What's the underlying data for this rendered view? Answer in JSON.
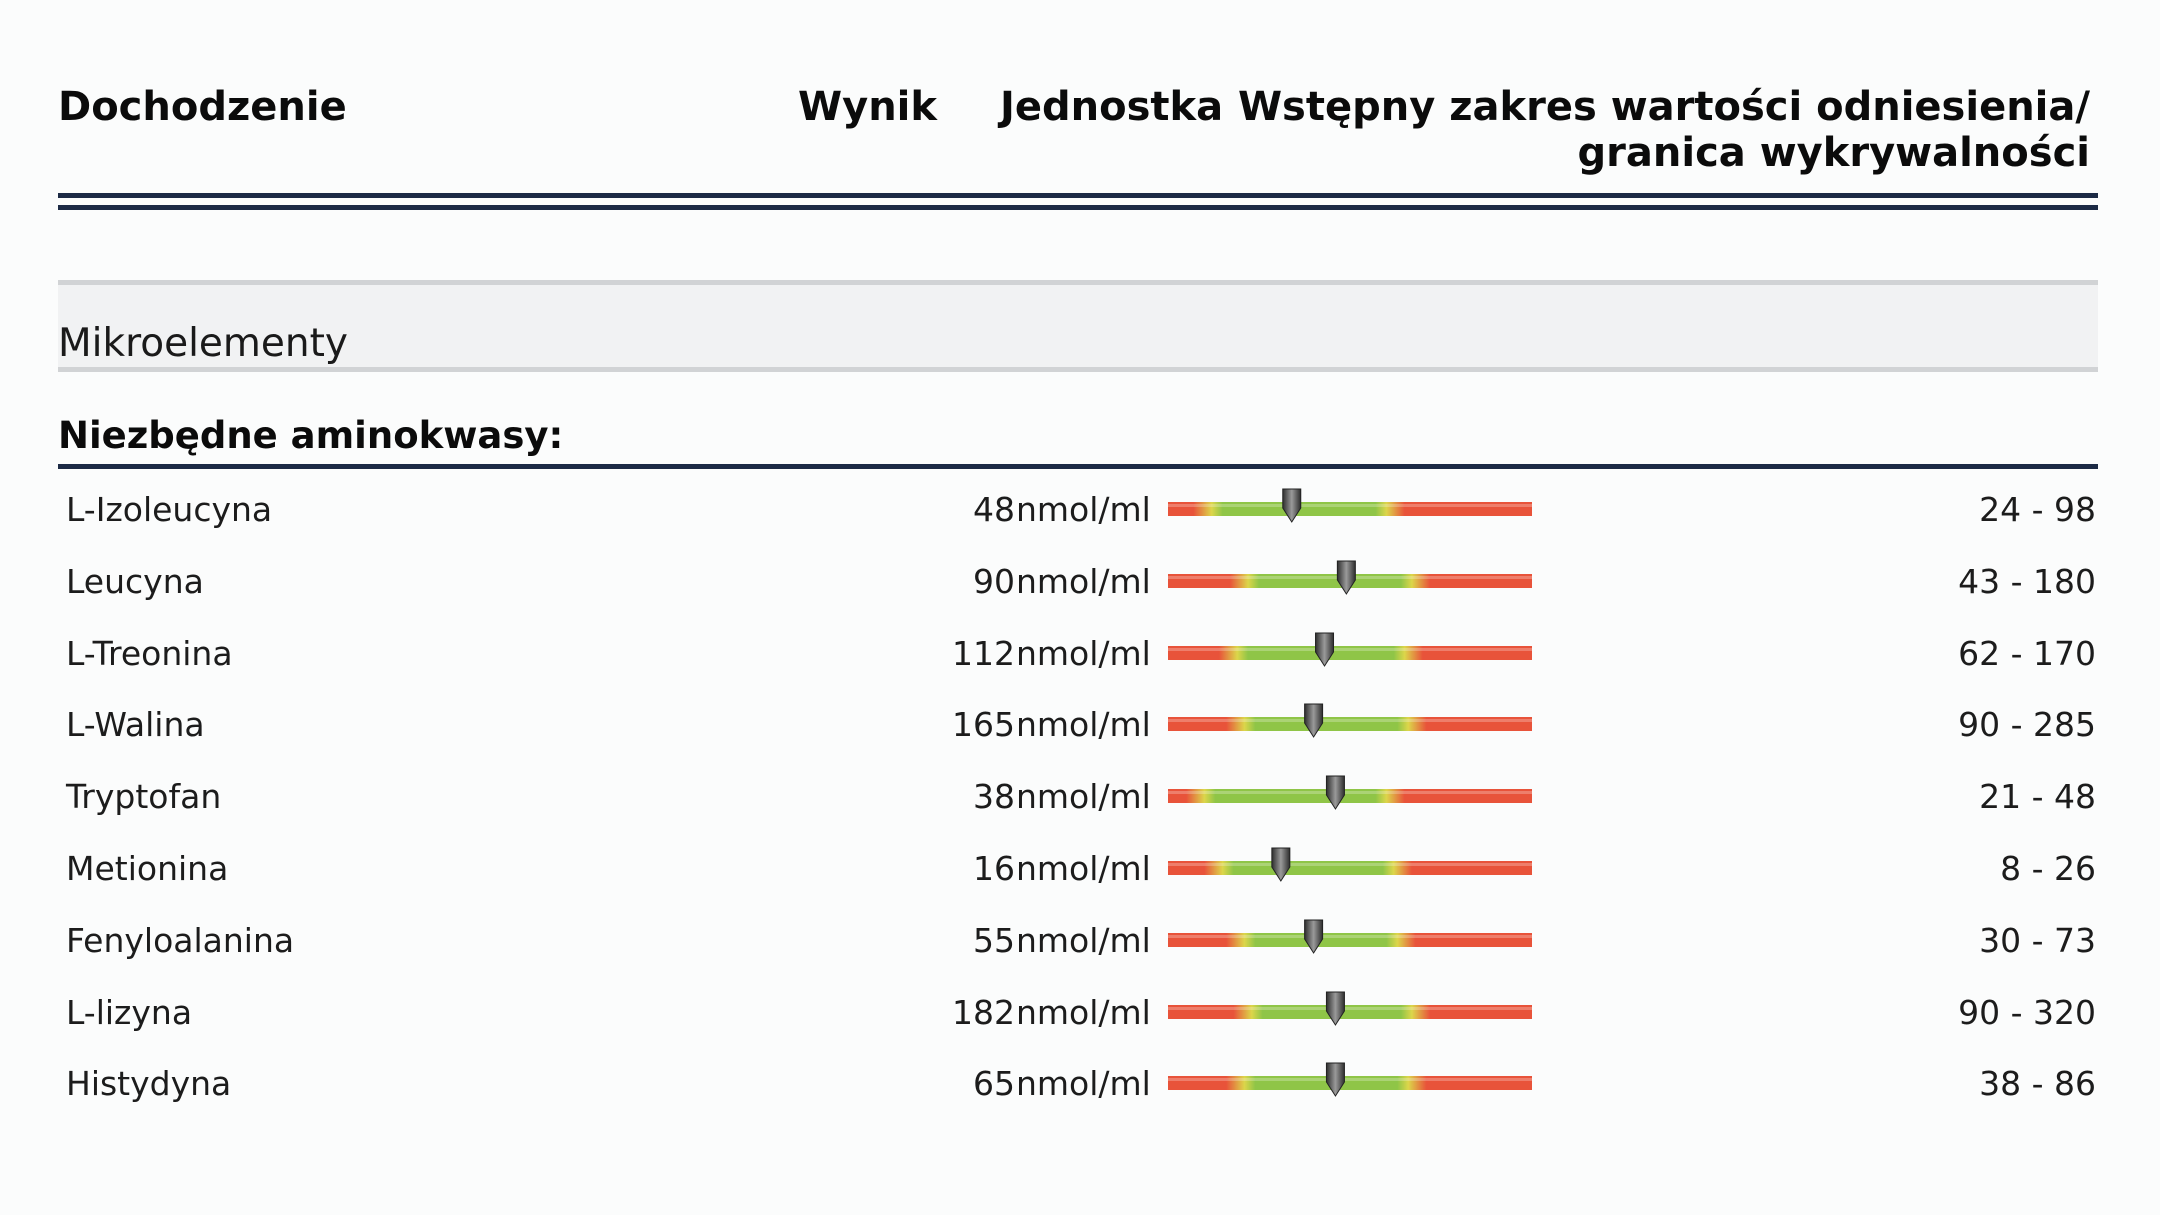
{
  "header": {
    "investigation": "Dochodzenie",
    "result": "Wynik",
    "unit": "Jednostka",
    "reference": "Wstępny zakres wartości odniesienia/ granica wykrywalności"
  },
  "section": {
    "label": "Mikroelementy"
  },
  "group": {
    "title": "Niezbędne aminokwasy:"
  },
  "colors": {
    "red": "#e8533a",
    "green": "#8fc547",
    "yellow": "#dcd64a",
    "rule": "#1c2a45"
  },
  "rows": [
    {
      "name": "L-Izoleucyna",
      "value": "48",
      "unit": "nmol/ml",
      "range": "24 - 98",
      "marker": 0.34,
      "green": [
        0.12,
        0.6
      ]
    },
    {
      "name": "Leucyna",
      "value": "90",
      "unit": "nmol/ml",
      "range": "43 - 180",
      "marker": 0.49,
      "green": [
        0.22,
        0.67
      ]
    },
    {
      "name": "L-Treonina",
      "value": "112",
      "unit": "nmol/ml",
      "range": "62 - 170",
      "marker": 0.43,
      "green": [
        0.19,
        0.65
      ]
    },
    {
      "name": "L-Walina",
      "value": "165",
      "unit": "nmol/ml",
      "range": "90 - 285",
      "marker": 0.4,
      "green": [
        0.21,
        0.66
      ]
    },
    {
      "name": "Tryptofan",
      "value": "38",
      "unit": "nmol/ml",
      "range": "21 - 48",
      "marker": 0.46,
      "green": [
        0.1,
        0.6
      ]
    },
    {
      "name": "Metionina",
      "value": "16",
      "unit": "nmol/ml",
      "range": "8 - 26",
      "marker": 0.31,
      "green": [
        0.15,
        0.62
      ]
    },
    {
      "name": "Fenyloalanina",
      "value": "55",
      "unit": "nmol/ml",
      "range": "30 - 73",
      "marker": 0.4,
      "green": [
        0.21,
        0.63
      ]
    },
    {
      "name": "L-lizyna",
      "value": "182",
      "unit": "nmol/ml",
      "range": "90 - 320",
      "marker": 0.46,
      "green": [
        0.23,
        0.67
      ]
    },
    {
      "name": "Histydyna",
      "value": "65",
      "unit": "nmol/ml",
      "range": "38 - 86",
      "marker": 0.46,
      "green": [
        0.21,
        0.66
      ]
    }
  ]
}
